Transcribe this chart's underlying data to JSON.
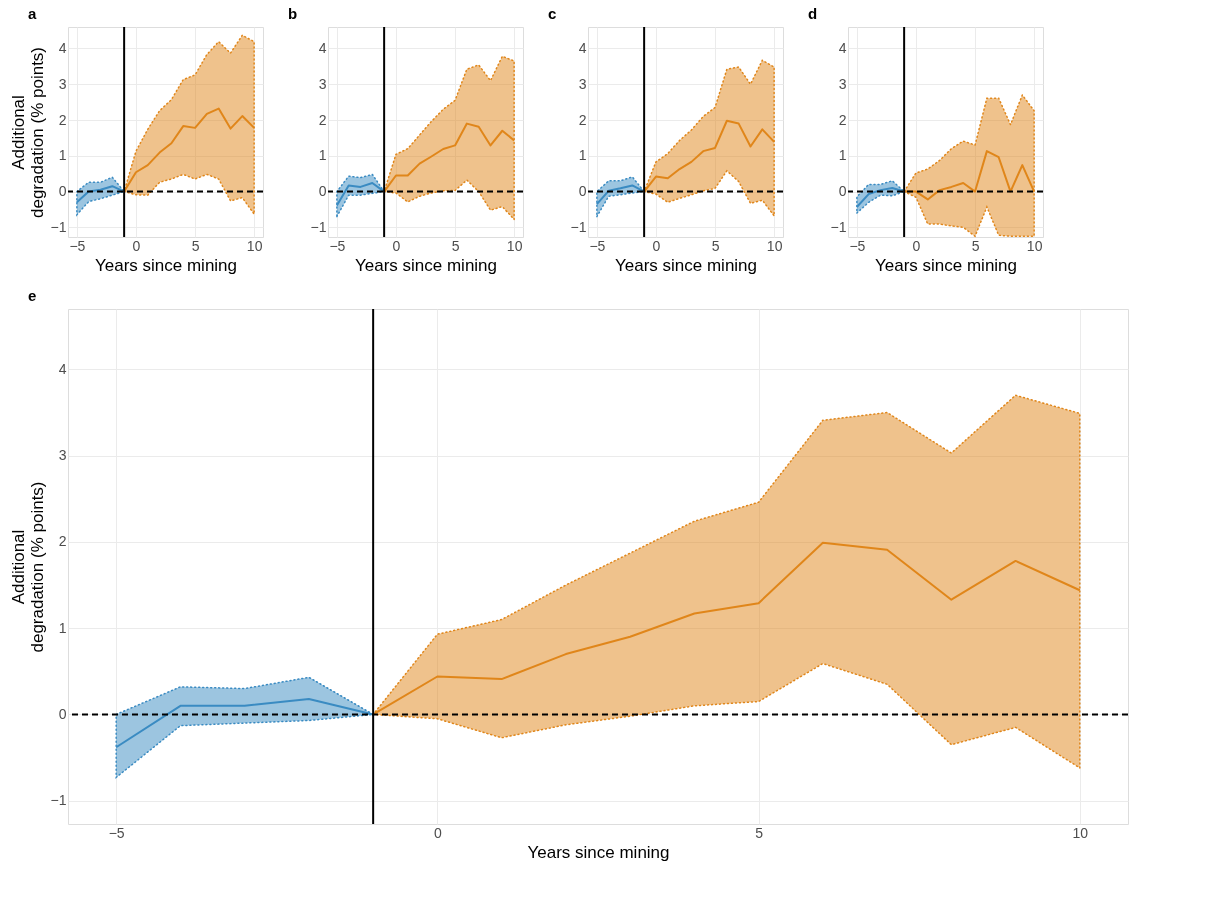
{
  "chart_data": [
    {
      "type": "line",
      "title": "a",
      "xlabel": "Years since mining",
      "ylabel": "Additional degradation (% points)",
      "xlim": [
        -5.75,
        10.75
      ],
      "ylim": [
        -1.27,
        4.6
      ],
      "xticks": [
        -5,
        0,
        5,
        10
      ],
      "yticks": [
        -1,
        0,
        1,
        2,
        3,
        4
      ],
      "grid": true,
      "ref_lines": [
        {
          "axis": "x",
          "value": -1,
          "color": "#000000",
          "line_style": "solid"
        },
        {
          "axis": "y",
          "value": 0,
          "color": "#000000",
          "line_style": "dashed"
        }
      ],
      "series": [
        {
          "color": "#3a8bc2",
          "x": [
            -5,
            -4,
            -3,
            -2,
            -1
          ],
          "values": [
            -0.3,
            0,
            0.05,
            0.15,
            0
          ],
          "lower": [
            -0.65,
            -0.28,
            -0.2,
            -0.1,
            0
          ],
          "upper": [
            0,
            0.26,
            0.26,
            0.4,
            0
          ]
        },
        {
          "color": "#e0861a",
          "x": [
            -1,
            0,
            1,
            2,
            3,
            4,
            5,
            6,
            7,
            8,
            9,
            10
          ],
          "values": [
            0,
            0.54,
            0.74,
            1.09,
            1.35,
            1.83,
            1.78,
            2.17,
            2.32,
            1.76,
            2.11,
            1.78
          ],
          "lower": [
            0,
            -0.09,
            -0.1,
            0.26,
            0.35,
            0.48,
            0.35,
            0.48,
            0.35,
            -0.26,
            -0.17,
            -0.63
          ],
          "upper": [
            0,
            1.13,
            1.74,
            2.26,
            2.57,
            3.13,
            3.26,
            3.83,
            4.19,
            3.87,
            4.37,
            4.19
          ]
        }
      ]
    },
    {
      "type": "line",
      "title": "b",
      "xlabel": "Years since mining",
      "xlim": [
        -5.75,
        10.75
      ],
      "ylim": [
        -1.27,
        4.6
      ],
      "xticks": [
        -5,
        0,
        5,
        10
      ],
      "yticks": [
        -1,
        0,
        1,
        2,
        3,
        4
      ],
      "grid": true,
      "ref_lines": [
        {
          "axis": "x",
          "value": -1,
          "color": "#000000",
          "line_style": "solid"
        },
        {
          "axis": "y",
          "value": 0,
          "color": "#000000",
          "line_style": "dashed"
        }
      ],
      "series": [
        {
          "color": "#3a8bc2",
          "x": [
            -5,
            -4,
            -3,
            -2,
            -1
          ],
          "values": [
            -0.39,
            0.17,
            0.13,
            0.24,
            0
          ],
          "lower": [
            -0.7,
            -0.1,
            -0.1,
            -0.05,
            0
          ],
          "upper": [
            0,
            0.43,
            0.39,
            0.48,
            0
          ]
        },
        {
          "color": "#e0861a",
          "x": [
            -1,
            0,
            1,
            2,
            3,
            4,
            5,
            6,
            7,
            8,
            9,
            10
          ],
          "values": [
            0,
            0.45,
            0.45,
            0.78,
            0.98,
            1.19,
            1.29,
            1.9,
            1.81,
            1.29,
            1.7,
            1.43
          ],
          "lower": [
            0,
            -0.04,
            -0.29,
            -0.13,
            -0.04,
            0.02,
            0.03,
            0.32,
            0,
            -0.52,
            -0.42,
            -0.78
          ],
          "upper": [
            0,
            1.04,
            1.2,
            1.58,
            1.96,
            2.3,
            2.55,
            3.42,
            3.54,
            3.1,
            3.78,
            3.65
          ]
        }
      ]
    },
    {
      "type": "line",
      "title": "c",
      "xlabel": "Years since mining",
      "xlim": [
        -5.75,
        10.75
      ],
      "ylim": [
        -1.27,
        4.6
      ],
      "xticks": [
        -5,
        0,
        5,
        10
      ],
      "yticks": [
        -1,
        0,
        1,
        2,
        3,
        4
      ],
      "grid": true,
      "ref_lines": [
        {
          "axis": "x",
          "value": -1,
          "color": "#000000",
          "line_style": "solid"
        },
        {
          "axis": "y",
          "value": 0,
          "color": "#000000",
          "line_style": "dashed"
        }
      ],
      "series": [
        {
          "color": "#3a8bc2",
          "x": [
            -5,
            -4,
            -3,
            -2,
            -1
          ],
          "values": [
            -0.35,
            0.02,
            0.09,
            0.17,
            0
          ],
          "lower": [
            -0.7,
            -0.13,
            -0.09,
            -0.04,
            0
          ],
          "upper": [
            0,
            0.3,
            0.3,
            0.41,
            0
          ]
        },
        {
          "color": "#e0861a",
          "x": [
            -1,
            0,
            1,
            2,
            3,
            4,
            5,
            6,
            7,
            8,
            9,
            10
          ],
          "values": [
            0,
            0.42,
            0.37,
            0.63,
            0.83,
            1.13,
            1.22,
            1.98,
            1.9,
            1.26,
            1.74,
            1.39
          ],
          "lower": [
            0,
            -0.07,
            -0.3,
            -0.19,
            -0.09,
            0.02,
            0.09,
            0.58,
            0.28,
            -0.33,
            -0.24,
            -0.68
          ],
          "upper": [
            0,
            0.83,
            1.06,
            1.43,
            1.72,
            2.1,
            2.35,
            3.42,
            3.48,
            3.0,
            3.67,
            3.48
          ]
        }
      ]
    },
    {
      "type": "line",
      "title": "d",
      "xlabel": "Years since mining",
      "xlim": [
        -5.75,
        10.75
      ],
      "ylim": [
        -1.27,
        4.6
      ],
      "xticks": [
        -5,
        0,
        5,
        10
      ],
      "yticks": [
        -1,
        0,
        1,
        2,
        3,
        4
      ],
      "grid": true,
      "ref_lines": [
        {
          "axis": "x",
          "value": -1,
          "color": "#000000",
          "line_style": "solid"
        },
        {
          "axis": "y",
          "value": 0,
          "color": "#000000",
          "line_style": "dashed"
        }
      ],
      "series": [
        {
          "color": "#3a8bc2",
          "x": [
            -5,
            -4,
            -3,
            -2,
            -1
          ],
          "values": [
            -0.43,
            -0.07,
            0.04,
            0.1,
            0
          ],
          "lower": [
            -0.6,
            -0.3,
            -0.1,
            -0.12,
            0
          ],
          "upper": [
            -0.15,
            0.2,
            0.2,
            0.3,
            0
          ]
        },
        {
          "color": "#e0861a",
          "x": [
            -1,
            0,
            1,
            2,
            3,
            4,
            5,
            6,
            7,
            8,
            9,
            10
          ],
          "values": [
            0,
            0,
            -0.22,
            0.04,
            0.13,
            0.24,
            0,
            1.13,
            0.96,
            0,
            0.74,
            0
          ],
          "lower": [
            0,
            -0.16,
            -0.91,
            -0.91,
            -0.96,
            -1.0,
            -1.25,
            -0.43,
            -1.22,
            -1.25,
            -1.25,
            -1.25
          ],
          "upper": [
            0,
            0.52,
            0.63,
            0.87,
            1.2,
            1.41,
            1.3,
            2.61,
            2.61,
            1.87,
            2.7,
            2.26
          ]
        }
      ]
    },
    {
      "type": "line",
      "title": "e",
      "xlabel": "Years since mining",
      "ylabel": "Additional degradation (% points)",
      "xlim": [
        -5.75,
        10.75
      ],
      "ylim": [
        -1.27,
        4.7
      ],
      "xticks": [
        -5,
        0,
        5,
        10
      ],
      "yticks": [
        -1,
        0,
        1,
        2,
        3,
        4
      ],
      "grid": true,
      "ref_lines": [
        {
          "axis": "x",
          "value": -1,
          "color": "#000000",
          "line_style": "solid"
        },
        {
          "axis": "y",
          "value": 0,
          "color": "#000000",
          "line_style": "dashed"
        }
      ],
      "series": [
        {
          "color": "#3a8bc2",
          "x": [
            -5,
            -4,
            -3,
            -2,
            -1
          ],
          "values": [
            -0.38,
            0.1,
            0.1,
            0.18,
            0
          ],
          "lower": [
            -0.73,
            -0.13,
            -0.1,
            -0.07,
            0
          ],
          "upper": [
            0,
            0.32,
            0.3,
            0.43,
            0
          ]
        },
        {
          "color": "#e0861a",
          "x": [
            -1,
            0,
            1,
            2,
            3,
            4,
            5,
            6,
            7,
            8,
            9,
            10
          ],
          "values": [
            0,
            0.44,
            0.41,
            0.7,
            0.9,
            1.17,
            1.29,
            1.99,
            1.91,
            1.33,
            1.78,
            1.44
          ],
          "lower": [
            0,
            -0.05,
            -0.27,
            -0.12,
            -0.02,
            0.1,
            0.15,
            0.59,
            0.35,
            -0.35,
            -0.15,
            -0.62
          ],
          "upper": [
            0,
            0.93,
            1.1,
            1.5,
            1.87,
            2.24,
            2.46,
            3.41,
            3.5,
            3.03,
            3.7,
            3.49
          ]
        }
      ]
    }
  ]
}
